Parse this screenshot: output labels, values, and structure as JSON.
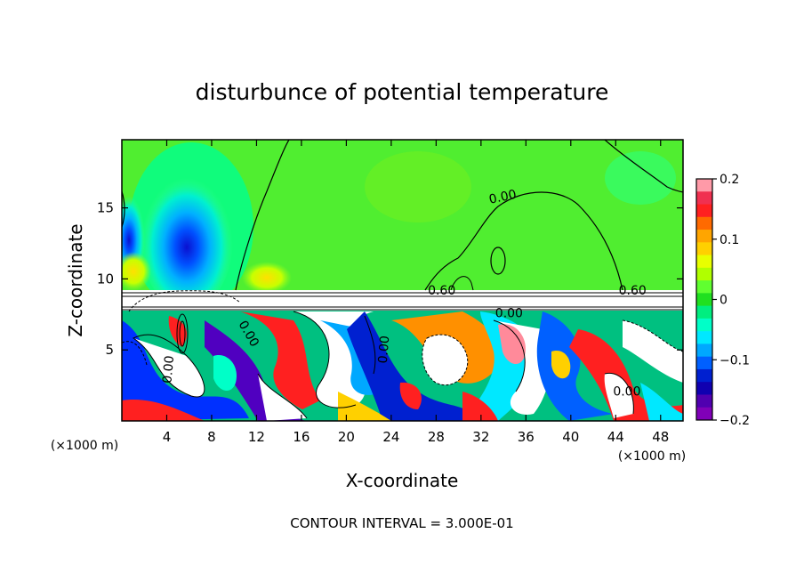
{
  "chart_data": {
    "type": "heatmap",
    "title": "disturbunce of potential temperature",
    "xlabel": "X-coordinate",
    "ylabel": "Z-coordinate",
    "x_unit": "(×1000 m)",
    "z_unit": "(×1000 m)",
    "xlim": [
      0,
      50
    ],
    "ylim": [
      0,
      19.8
    ],
    "x_ticks": [
      4,
      8,
      12,
      16,
      20,
      24,
      28,
      32,
      36,
      40,
      44,
      48
    ],
    "y_ticks": [
      5,
      10,
      15
    ],
    "colorbar": {
      "ticks": [
        "0.2",
        "0.1",
        "0",
        "−0.1",
        "−0.2"
      ],
      "range": [
        -0.2,
        0.2
      ],
      "colors": [
        "#ff9aa8",
        "#f03050",
        "#ff2020",
        "#ff6a00",
        "#ffa500",
        "#ffd000",
        "#e8ff00",
        "#b0ff00",
        "#60ff30",
        "#20e020",
        "#00ee80",
        "#00ffc8",
        "#00e8ff",
        "#00a8ff",
        "#0060ff",
        "#0020d0",
        "#1000b0",
        "#5000b0",
        "#8000b8"
      ]
    },
    "contour_labels": [
      {
        "text": "0.00",
        "x": 34,
        "z": 15.5
      },
      {
        "text": "0.60",
        "x": 28.5,
        "z": 8.9
      },
      {
        "text": "0.60",
        "x": 45.5,
        "z": 8.9
      },
      {
        "text": "0.00",
        "x": 34.5,
        "z": 7.3
      },
      {
        "text": "0.00",
        "x": 11,
        "z": 6
      },
      {
        "text": "0.00",
        "x": 23.7,
        "z": 5
      },
      {
        "text": "0.00",
        "x": 4.5,
        "z": 3.6
      },
      {
        "text": "0.00",
        "x": 45,
        "z": 1.8
      }
    ],
    "annotation": "CONTOUR INTERVAL = 3.000E-01"
  }
}
